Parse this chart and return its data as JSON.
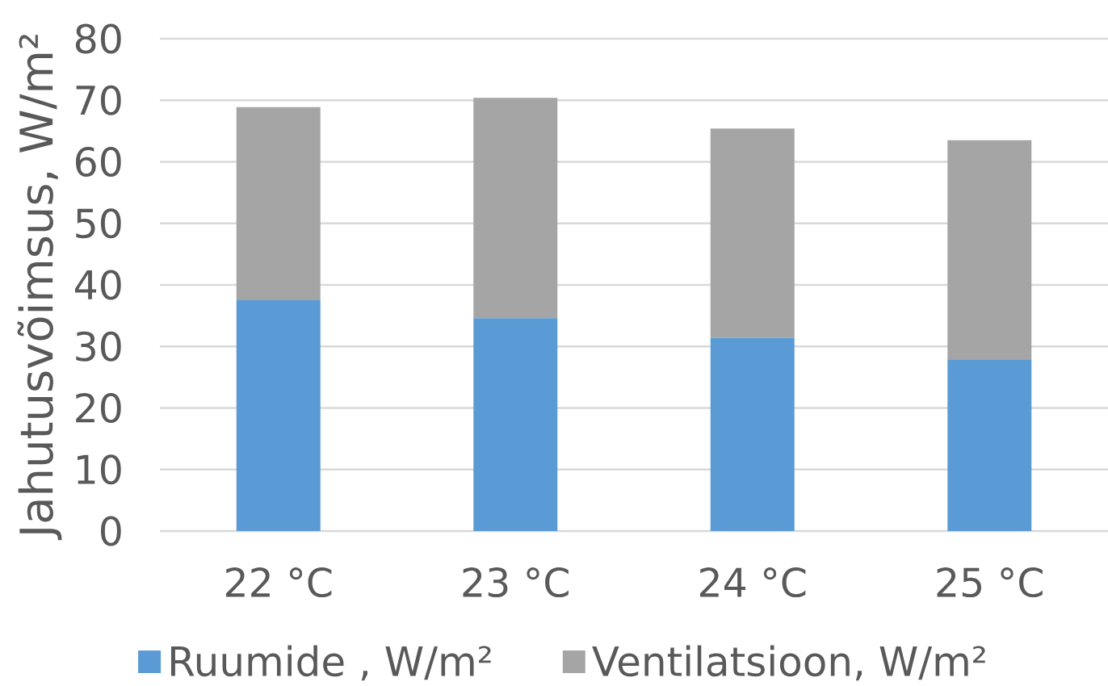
{
  "chart_data": {
    "type": "bar",
    "stacked": true,
    "ylabel": "Jahutusvõimsus, W/m²",
    "categories": [
      "22 °C",
      "23 °C",
      "24 °C",
      "25 °C"
    ],
    "series": [
      {
        "name": "Ruumide , W/m²",
        "color": "#5b9bd5",
        "values": [
          37.5,
          34.6,
          31.4,
          27.9
        ]
      },
      {
        "name": "Ventilatsioon, W/m²",
        "color": "#a5a5a5",
        "values": [
          31.4,
          35.8,
          34.0,
          35.6
        ]
      }
    ],
    "ylim": [
      0,
      80
    ],
    "yticks": [
      0,
      10,
      20,
      30,
      40,
      50,
      60,
      70,
      80
    ],
    "grid": "y",
    "legend": "bottom"
  }
}
